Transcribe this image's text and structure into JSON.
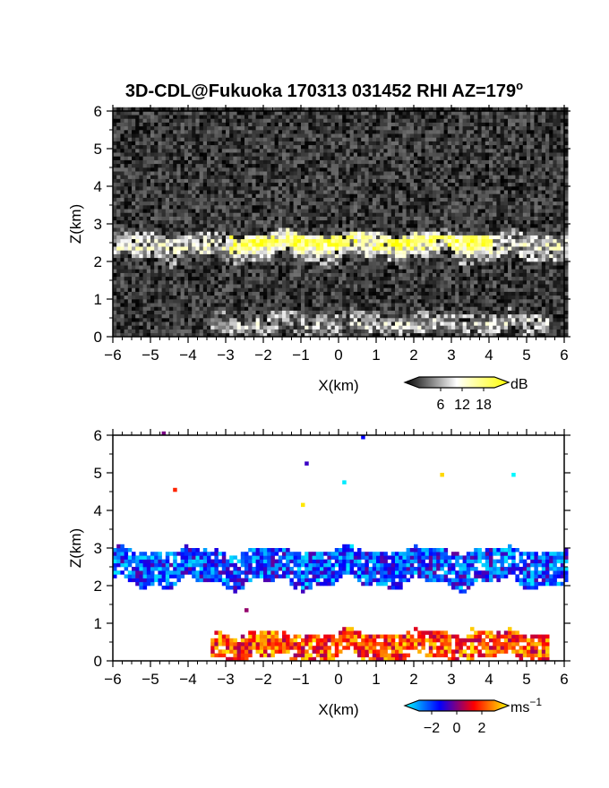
{
  "chart_data": [
    {
      "type": "heatmap",
      "title": "3D-CDL@Fukuoka 170313 031452 RHI AZ=179",
      "title_superscript": "o",
      "xlabel": "X(km)",
      "ylabel": "Z(km)",
      "xlim": [
        -6,
        6
      ],
      "ylim": [
        0,
        6
      ],
      "x_ticks": [
        "−6",
        "−5",
        "−4",
        "−3",
        "−2",
        "−1",
        "0",
        "1",
        "2",
        "3",
        "4",
        "5",
        "6"
      ],
      "y_ticks": [
        "0",
        "1",
        "2",
        "3",
        "4",
        "5",
        "6"
      ],
      "colorbar": {
        "label": "dB",
        "ticks": [
          "6",
          "12",
          "18"
        ],
        "range": [
          0,
          21
        ],
        "colors": [
          "#000000",
          "#ffffff",
          "#ffff00"
        ]
      },
      "background": "#1e1e1e",
      "features": [
        {
          "name": "cloud layer",
          "x_range": [
            -6,
            6
          ],
          "z_bottom": 2.0,
          "z_top": 2.7,
          "intensity_db": 10
        },
        {
          "name": "strong echo",
          "x_range": [
            -3,
            4
          ],
          "z_bottom": 2.2,
          "z_top": 2.7,
          "intensity_db": 19
        },
        {
          "name": "near-ground clutter",
          "x_range": [
            -3.5,
            5.5
          ],
          "z_bottom": 0,
          "z_top": 0.6,
          "intensity_db": 8
        }
      ]
    },
    {
      "type": "heatmap",
      "xlabel": "X(km)",
      "ylabel": "Z(km)",
      "xlim": [
        -6,
        6
      ],
      "ylim": [
        0,
        6
      ],
      "x_ticks": [
        "−6",
        "−5",
        "−4",
        "−3",
        "−2",
        "−1",
        "0",
        "1",
        "2",
        "3",
        "4",
        "5",
        "6"
      ],
      "y_ticks": [
        "0",
        "1",
        "2",
        "3",
        "4",
        "5",
        "6"
      ],
      "colorbar": {
        "label": "ms",
        "label_superscript": "−1",
        "ticks": [
          "−2",
          "0",
          "2"
        ],
        "range": [
          -3,
          3
        ],
        "colors": [
          "#00ffff",
          "#0000ff",
          "#ff0000",
          "#ffff00"
        ]
      },
      "background": "#ffffff",
      "features": [
        {
          "name": "cloud layer",
          "x_range": [
            -6,
            6
          ],
          "z_bottom": 2.0,
          "z_top": 2.9,
          "velocity": -1.5
        },
        {
          "name": "near-ground layer",
          "x_range": [
            -3.5,
            5.5
          ],
          "z_bottom": 0,
          "z_top": 0.7,
          "velocity": 1.5
        }
      ]
    }
  ]
}
